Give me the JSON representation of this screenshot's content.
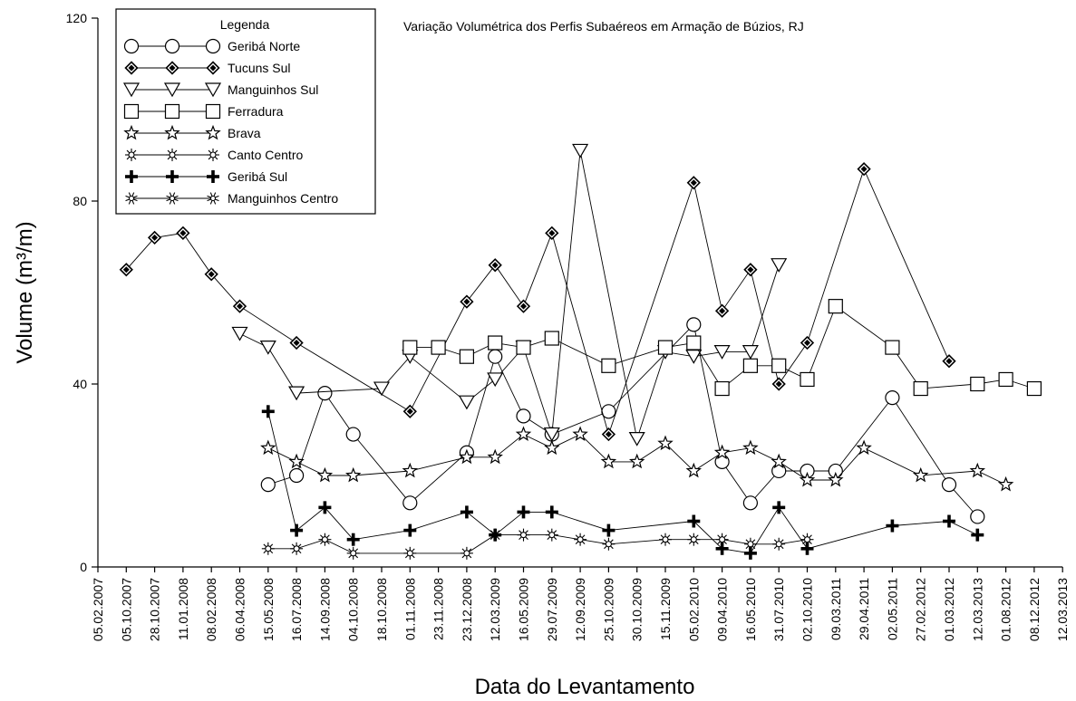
{
  "chart_data": {
    "type": "line",
    "title": "Variação Volumétrica dos Perfis Subaéreos em Armação de Búzios, RJ",
    "xlabel": "Data do Levantamento",
    "ylabel": "Volume (m³/m)",
    "ylim": [
      0,
      120
    ],
    "yticks": [
      0,
      40,
      80,
      120
    ],
    "grid": false,
    "legend_title": "Legenda",
    "legend_position": "top-left",
    "categories": [
      "05.02.2007",
      "05.10.2007",
      "28.10.2007",
      "11.01.2008",
      "08.02.2008",
      "06.04.2008",
      "15.05.2008",
      "16.07.2008",
      "14.09.2008",
      "04.10.2008",
      "18.10.2008",
      "01.11.2008",
      "23.11.2008",
      "23.12.2008",
      "12.03.2009",
      "16.05.2009",
      "29.07.2009",
      "12.09.2009",
      "25.10.2009",
      "30.10.2009",
      "15.11.2009",
      "05.02.2010",
      "09.04.2010",
      "16.05.2010",
      "31.07.2010",
      "02.10.2010",
      "09.03.2011",
      "29.04.2011",
      "02.05.2011",
      "27.02.2012",
      "01.03.2012",
      "12.03.2013",
      "01.08.2012",
      "08.12.2012",
      "12.03.2013"
    ],
    "series": [
      {
        "name": "Geribá Norte",
        "marker": "circle",
        "points": [
          [
            6,
            18
          ],
          [
            7,
            20
          ],
          [
            8,
            38
          ],
          [
            9,
            29
          ],
          [
            11,
            14
          ],
          [
            13,
            25
          ],
          [
            14,
            46
          ],
          [
            15,
            33
          ],
          [
            16,
            29
          ],
          [
            18,
            34
          ],
          [
            21,
            53
          ],
          [
            22,
            23
          ],
          [
            23,
            14
          ],
          [
            24,
            21
          ],
          [
            25,
            21
          ],
          [
            26,
            21
          ],
          [
            28,
            37
          ],
          [
            30,
            18
          ],
          [
            31,
            11
          ]
        ]
      },
      {
        "name": "Tucuns Sul",
        "marker": "diamond",
        "points": [
          [
            1,
            65
          ],
          [
            2,
            72
          ],
          [
            3,
            73
          ],
          [
            4,
            64
          ],
          [
            5,
            57
          ],
          [
            7,
            49
          ],
          [
            11,
            34
          ],
          [
            13,
            58
          ],
          [
            14,
            66
          ],
          [
            15,
            57
          ],
          [
            16,
            73
          ],
          [
            18,
            29
          ],
          [
            21,
            84
          ],
          [
            22,
            56
          ],
          [
            23,
            65
          ],
          [
            24,
            40
          ],
          [
            25,
            49
          ],
          [
            27,
            87
          ],
          [
            30,
            45
          ]
        ]
      },
      {
        "name": "Manguinhos Sul",
        "marker": "triangle-down",
        "points": [
          [
            5,
            51
          ],
          [
            6,
            48
          ],
          [
            7,
            38
          ],
          [
            10,
            39
          ],
          [
            11,
            46
          ],
          [
            13,
            36
          ],
          [
            14,
            41
          ],
          [
            15,
            48
          ],
          [
            16,
            29
          ],
          [
            17,
            91
          ],
          [
            19,
            28
          ],
          [
            20,
            47
          ],
          [
            21,
            46
          ],
          [
            22,
            47
          ],
          [
            23,
            47
          ],
          [
            24,
            66
          ]
        ]
      },
      {
        "name": "Ferradura",
        "marker": "square",
        "points": [
          [
            11,
            48
          ],
          [
            12,
            48
          ],
          [
            13,
            46
          ],
          [
            14,
            49
          ],
          [
            15,
            48
          ],
          [
            16,
            50
          ],
          [
            18,
            44
          ],
          [
            20,
            48
          ],
          [
            21,
            49
          ],
          [
            22,
            39
          ],
          [
            23,
            44
          ],
          [
            24,
            44
          ],
          [
            25,
            41
          ],
          [
            26,
            57
          ],
          [
            28,
            48
          ],
          [
            29,
            39
          ],
          [
            31,
            40
          ],
          [
            32,
            41
          ],
          [
            33,
            39
          ]
        ]
      },
      {
        "name": "Brava",
        "marker": "star",
        "points": [
          [
            6,
            26
          ],
          [
            7,
            23
          ],
          [
            8,
            20
          ],
          [
            9,
            20
          ],
          [
            11,
            21
          ],
          [
            13,
            24
          ],
          [
            14,
            24
          ],
          [
            15,
            29
          ],
          [
            16,
            26
          ],
          [
            17,
            29
          ],
          [
            18,
            23
          ],
          [
            19,
            23
          ],
          [
            20,
            27
          ],
          [
            21,
            21
          ],
          [
            22,
            25
          ],
          [
            23,
            26
          ],
          [
            24,
            23
          ],
          [
            25,
            19
          ],
          [
            26,
            19
          ],
          [
            27,
            26
          ],
          [
            29,
            20
          ],
          [
            31,
            21
          ],
          [
            32,
            18
          ]
        ]
      },
      {
        "name": "Canto Centro",
        "marker": "sun",
        "points": [
          [
            6,
            4
          ],
          [
            7,
            4
          ],
          [
            8,
            6
          ],
          [
            9,
            3
          ],
          [
            11,
            3
          ],
          [
            13,
            3
          ],
          [
            14,
            7
          ],
          [
            15,
            7
          ],
          [
            16,
            7
          ],
          [
            17,
            6
          ],
          [
            18,
            5
          ],
          [
            20,
            6
          ],
          [
            21,
            6
          ],
          [
            22,
            6
          ],
          [
            23,
            5
          ],
          [
            24,
            5
          ],
          [
            25,
            6
          ]
        ]
      },
      {
        "name": "Geribá Sul",
        "marker": "plus",
        "points": [
          [
            6,
            34
          ],
          [
            7,
            8
          ],
          [
            8,
            13
          ],
          [
            9,
            6
          ],
          [
            11,
            8
          ],
          [
            13,
            12
          ],
          [
            14,
            7
          ],
          [
            15,
            12
          ],
          [
            16,
            12
          ],
          [
            18,
            8
          ],
          [
            21,
            10
          ],
          [
            22,
            4
          ],
          [
            23,
            3
          ],
          [
            24,
            13
          ],
          [
            25,
            4
          ],
          [
            28,
            9
          ],
          [
            30,
            10
          ],
          [
            31,
            7
          ]
        ]
      },
      {
        "name": "Manguinhos Centro",
        "marker": "asterisk",
        "points": []
      }
    ]
  }
}
